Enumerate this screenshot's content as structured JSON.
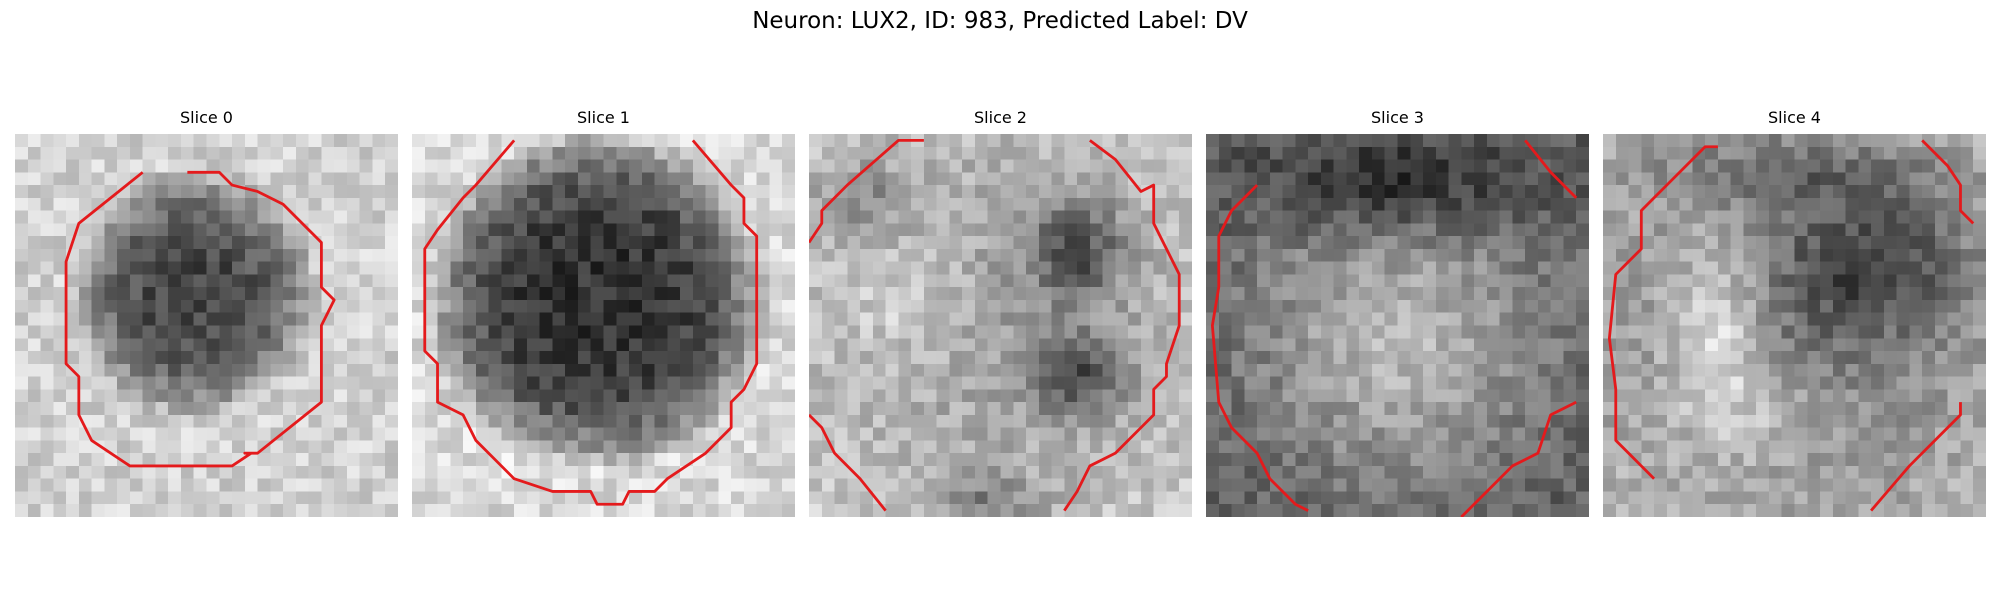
{
  "figure": {
    "title": "Neuron: LUX2, ID: 983, Predicted Label: DV",
    "contour_color": "#e41a1c"
  },
  "panels": [
    {
      "title": "Slice 0",
      "pattern": "dark-blob-center",
      "contour": "closed-octagon"
    },
    {
      "title": "Slice 1",
      "pattern": "dark-large-circle",
      "contour": "open-arc"
    },
    {
      "title": "Slice 2",
      "pattern": "two-dark-lobes-right",
      "contour": "open-arc"
    },
    {
      "title": "Slice 3",
      "pattern": "speckled-disc",
      "contour": "open-arc"
    },
    {
      "title": "Slice 4",
      "pattern": "bright-core-left",
      "contour": "open-arc"
    }
  ]
}
